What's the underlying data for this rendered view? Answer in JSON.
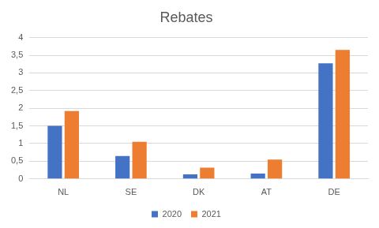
{
  "chart_data": {
    "type": "bar",
    "title": "Rebates",
    "categories": [
      "NL",
      "SE",
      "DK",
      "AT",
      "DE"
    ],
    "series": [
      {
        "name": "2020",
        "color": "#4472c4",
        "values": [
          1.5,
          0.65,
          0.13,
          0.15,
          3.27
        ]
      },
      {
        "name": "2021",
        "color": "#ed7d31",
        "values": [
          1.92,
          1.05,
          0.32,
          0.55,
          3.65
        ]
      }
    ],
    "ylim": [
      0,
      4
    ],
    "yticks": [
      0,
      {
        "value": 0.5,
        "label": "0,5"
      },
      1,
      {
        "value": 1.5,
        "label": "1,5"
      },
      2,
      {
        "value": 2.5,
        "label": "2,5"
      },
      3,
      {
        "value": 3.5,
        "label": "3,5"
      },
      4
    ],
    "grid": true,
    "legend": "bottom"
  }
}
